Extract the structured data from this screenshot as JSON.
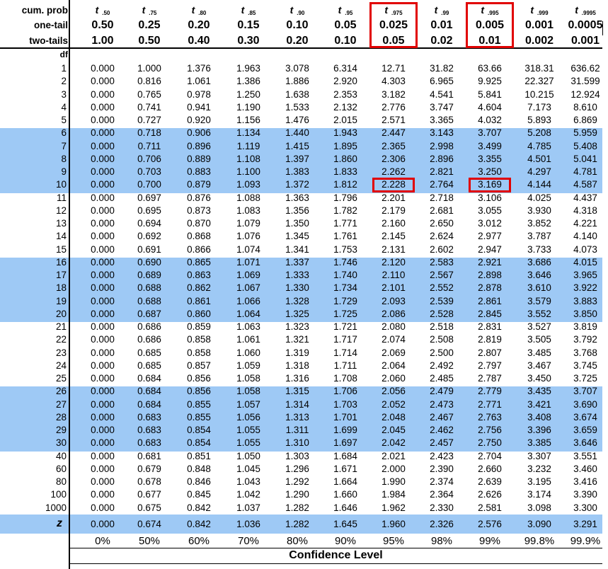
{
  "header": {
    "cum_prob_label": "cum. prob",
    "one_tail_label": "one-tail",
    "two_tails_label": "two-tails",
    "df_label": "df"
  },
  "columns": [
    {
      "t": "t",
      "sub": ".50",
      "one_tail": "0.50",
      "two_tails": "1.00"
    },
    {
      "t": "t",
      "sub": ".75",
      "one_tail": "0.25",
      "two_tails": "0.50"
    },
    {
      "t": "t",
      "sub": ".80",
      "one_tail": "0.20",
      "two_tails": "0.40"
    },
    {
      "t": "t",
      "sub": ".85",
      "one_tail": "0.15",
      "two_tails": "0.30"
    },
    {
      "t": "t",
      "sub": ".90",
      "one_tail": "0.10",
      "two_tails": "0.20"
    },
    {
      "t": "t",
      "sub": ".95",
      "one_tail": "0.05",
      "two_tails": "0.10"
    },
    {
      "t": "t",
      "sub": ".975",
      "one_tail": "0.025",
      "two_tails": "0.05"
    },
    {
      "t": "t",
      "sub": ".99",
      "one_tail": "0.01",
      "two_tails": "0.02"
    },
    {
      "t": "t",
      "sub": ".995",
      "one_tail": "0.005",
      "two_tails": "0.01"
    },
    {
      "t": "t",
      "sub": ".999",
      "one_tail": "0.001",
      "two_tails": "0.002"
    },
    {
      "t": "t",
      "sub": ".9995",
      "one_tail": "0.0005",
      "two_tails": "0.001"
    }
  ],
  "rows": [
    {
      "df": "1",
      "v": [
        "0.000",
        "1.000",
        "1.376",
        "1.963",
        "3.078",
        "6.314",
        "12.71",
        "31.82",
        "63.66",
        "318.31",
        "636.62"
      ]
    },
    {
      "df": "2",
      "v": [
        "0.000",
        "0.816",
        "1.061",
        "1.386",
        "1.886",
        "2.920",
        "4.303",
        "6.965",
        "9.925",
        "22.327",
        "31.599"
      ]
    },
    {
      "df": "3",
      "v": [
        "0.000",
        "0.765",
        "0.978",
        "1.250",
        "1.638",
        "2.353",
        "3.182",
        "4.541",
        "5.841",
        "10.215",
        "12.924"
      ]
    },
    {
      "df": "4",
      "v": [
        "0.000",
        "0.741",
        "0.941",
        "1.190",
        "1.533",
        "2.132",
        "2.776",
        "3.747",
        "4.604",
        "7.173",
        "8.610"
      ]
    },
    {
      "df": "5",
      "v": [
        "0.000",
        "0.727",
        "0.920",
        "1.156",
        "1.476",
        "2.015",
        "2.571",
        "3.365",
        "4.032",
        "5.893",
        "6.869"
      ]
    },
    {
      "df": "6",
      "v": [
        "0.000",
        "0.718",
        "0.906",
        "1.134",
        "1.440",
        "1.943",
        "2.447",
        "3.143",
        "3.707",
        "5.208",
        "5.959"
      ]
    },
    {
      "df": "7",
      "v": [
        "0.000",
        "0.711",
        "0.896",
        "1.119",
        "1.415",
        "1.895",
        "2.365",
        "2.998",
        "3.499",
        "4.785",
        "5.408"
      ]
    },
    {
      "df": "8",
      "v": [
        "0.000",
        "0.706",
        "0.889",
        "1.108",
        "1.397",
        "1.860",
        "2.306",
        "2.896",
        "3.355",
        "4.501",
        "5.041"
      ]
    },
    {
      "df": "9",
      "v": [
        "0.000",
        "0.703",
        "0.883",
        "1.100",
        "1.383",
        "1.833",
        "2.262",
        "2.821",
        "3.250",
        "4.297",
        "4.781"
      ]
    },
    {
      "df": "10",
      "v": [
        "0.000",
        "0.700",
        "0.879",
        "1.093",
        "1.372",
        "1.812",
        "2.228",
        "2.764",
        "3.169",
        "4.144",
        "4.587"
      ]
    },
    {
      "df": "11",
      "v": [
        "0.000",
        "0.697",
        "0.876",
        "1.088",
        "1.363",
        "1.796",
        "2.201",
        "2.718",
        "3.106",
        "4.025",
        "4.437"
      ]
    },
    {
      "df": "12",
      "v": [
        "0.000",
        "0.695",
        "0.873",
        "1.083",
        "1.356",
        "1.782",
        "2.179",
        "2.681",
        "3.055",
        "3.930",
        "4.318"
      ]
    },
    {
      "df": "13",
      "v": [
        "0.000",
        "0.694",
        "0.870",
        "1.079",
        "1.350",
        "1.771",
        "2.160",
        "2.650",
        "3.012",
        "3.852",
        "4.221"
      ]
    },
    {
      "df": "14",
      "v": [
        "0.000",
        "0.692",
        "0.868",
        "1.076",
        "1.345",
        "1.761",
        "2.145",
        "2.624",
        "2.977",
        "3.787",
        "4.140"
      ]
    },
    {
      "df": "15",
      "v": [
        "0.000",
        "0.691",
        "0.866",
        "1.074",
        "1.341",
        "1.753",
        "2.131",
        "2.602",
        "2.947",
        "3.733",
        "4.073"
      ]
    },
    {
      "df": "16",
      "v": [
        "0.000",
        "0.690",
        "0.865",
        "1.071",
        "1.337",
        "1.746",
        "2.120",
        "2.583",
        "2.921",
        "3.686",
        "4.015"
      ]
    },
    {
      "df": "17",
      "v": [
        "0.000",
        "0.689",
        "0.863",
        "1.069",
        "1.333",
        "1.740",
        "2.110",
        "2.567",
        "2.898",
        "3.646",
        "3.965"
      ]
    },
    {
      "df": "18",
      "v": [
        "0.000",
        "0.688",
        "0.862",
        "1.067",
        "1.330",
        "1.734",
        "2.101",
        "2.552",
        "2.878",
        "3.610",
        "3.922"
      ]
    },
    {
      "df": "19",
      "v": [
        "0.000",
        "0.688",
        "0.861",
        "1.066",
        "1.328",
        "1.729",
        "2.093",
        "2.539",
        "2.861",
        "3.579",
        "3.883"
      ]
    },
    {
      "df": "20",
      "v": [
        "0.000",
        "0.687",
        "0.860",
        "1.064",
        "1.325",
        "1.725",
        "2.086",
        "2.528",
        "2.845",
        "3.552",
        "3.850"
      ]
    },
    {
      "df": "21",
      "v": [
        "0.000",
        "0.686",
        "0.859",
        "1.063",
        "1.323",
        "1.721",
        "2.080",
        "2.518",
        "2.831",
        "3.527",
        "3.819"
      ]
    },
    {
      "df": "22",
      "v": [
        "0.000",
        "0.686",
        "0.858",
        "1.061",
        "1.321",
        "1.717",
        "2.074",
        "2.508",
        "2.819",
        "3.505",
        "3.792"
      ]
    },
    {
      "df": "23",
      "v": [
        "0.000",
        "0.685",
        "0.858",
        "1.060",
        "1.319",
        "1.714",
        "2.069",
        "2.500",
        "2.807",
        "3.485",
        "3.768"
      ]
    },
    {
      "df": "24",
      "v": [
        "0.000",
        "0.685",
        "0.857",
        "1.059",
        "1.318",
        "1.711",
        "2.064",
        "2.492",
        "2.797",
        "3.467",
        "3.745"
      ]
    },
    {
      "df": "25",
      "v": [
        "0.000",
        "0.684",
        "0.856",
        "1.058",
        "1.316",
        "1.708",
        "2.060",
        "2.485",
        "2.787",
        "3.450",
        "3.725"
      ]
    },
    {
      "df": "26",
      "v": [
        "0.000",
        "0.684",
        "0.856",
        "1.058",
        "1.315",
        "1.706",
        "2.056",
        "2.479",
        "2.779",
        "3.435",
        "3.707"
      ]
    },
    {
      "df": "27",
      "v": [
        "0.000",
        "0.684",
        "0.855",
        "1.057",
        "1.314",
        "1.703",
        "2.052",
        "2.473",
        "2.771",
        "3.421",
        "3.690"
      ]
    },
    {
      "df": "28",
      "v": [
        "0.000",
        "0.683",
        "0.855",
        "1.056",
        "1.313",
        "1.701",
        "2.048",
        "2.467",
        "2.763",
        "3.408",
        "3.674"
      ]
    },
    {
      "df": "29",
      "v": [
        "0.000",
        "0.683",
        "0.854",
        "1.055",
        "1.311",
        "1.699",
        "2.045",
        "2.462",
        "2.756",
        "3.396",
        "3.659"
      ]
    },
    {
      "df": "30",
      "v": [
        "0.000",
        "0.683",
        "0.854",
        "1.055",
        "1.310",
        "1.697",
        "2.042",
        "2.457",
        "2.750",
        "3.385",
        "3.646"
      ]
    },
    {
      "df": "40",
      "v": [
        "0.000",
        "0.681",
        "0.851",
        "1.050",
        "1.303",
        "1.684",
        "2.021",
        "2.423",
        "2.704",
        "3.307",
        "3.551"
      ]
    },
    {
      "df": "60",
      "v": [
        "0.000",
        "0.679",
        "0.848",
        "1.045",
        "1.296",
        "1.671",
        "2.000",
        "2.390",
        "2.660",
        "3.232",
        "3.460"
      ]
    },
    {
      "df": "80",
      "v": [
        "0.000",
        "0.678",
        "0.846",
        "1.043",
        "1.292",
        "1.664",
        "1.990",
        "2.374",
        "2.639",
        "3.195",
        "3.416"
      ]
    },
    {
      "df": "100",
      "v": [
        "0.000",
        "0.677",
        "0.845",
        "1.042",
        "1.290",
        "1.660",
        "1.984",
        "2.364",
        "2.626",
        "3.174",
        "3.390"
      ]
    },
    {
      "df": "1000",
      "v": [
        "0.000",
        "0.675",
        "0.842",
        "1.037",
        "1.282",
        "1.646",
        "1.962",
        "2.330",
        "2.581",
        "3.098",
        "3.300"
      ]
    }
  ],
  "z_row": {
    "label": "z",
    "v": [
      "0.000",
      "0.674",
      "0.842",
      "1.036",
      "1.282",
      "1.645",
      "1.960",
      "2.326",
      "2.576",
      "3.090",
      "3.291"
    ]
  },
  "confidence": {
    "values": [
      "0%",
      "50%",
      "60%",
      "70%",
      "80%",
      "90%",
      "95%",
      "98%",
      "99%",
      "99.8%",
      "99.9%"
    ],
    "title": "Confidence Level"
  },
  "highlight_color": "#9ec9f5",
  "box_color": "#e10000"
}
